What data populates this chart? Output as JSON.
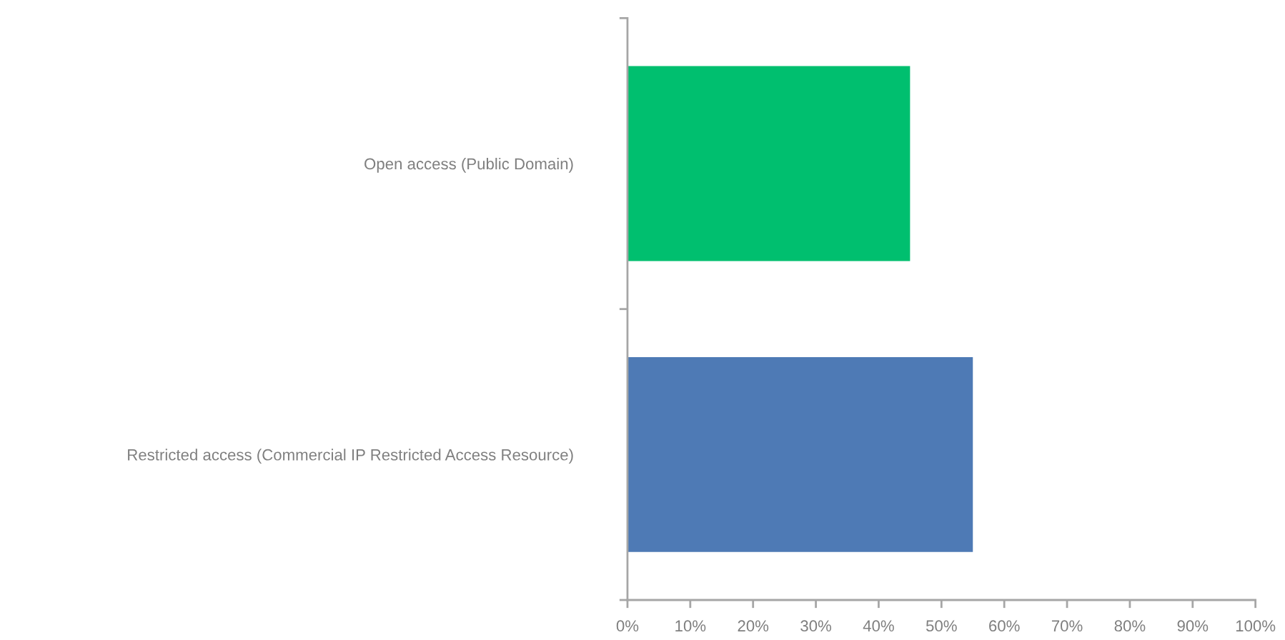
{
  "chart_data": {
    "type": "bar",
    "orientation": "horizontal",
    "categories": [
      "Open access (Public Domain)",
      "Restricted access (Commercial IP Restricted Access Resource)"
    ],
    "values": [
      45,
      55
    ],
    "colors": [
      "#00bf6f",
      "#4e7ab5"
    ],
    "xlim": [
      0,
      100
    ],
    "xticks": [
      {
        "value": 0,
        "label": "0%"
      },
      {
        "value": 10,
        "label": "10%"
      },
      {
        "value": 20,
        "label": "20%"
      },
      {
        "value": 30,
        "label": "30%"
      },
      {
        "value": 40,
        "label": "40%"
      },
      {
        "value": 50,
        "label": "50%"
      },
      {
        "value": 60,
        "label": "60%"
      },
      {
        "value": 70,
        "label": "70%"
      },
      {
        "value": 80,
        "label": "80%"
      },
      {
        "value": 90,
        "label": "90%"
      },
      {
        "value": 100,
        "label": "100%"
      }
    ]
  }
}
